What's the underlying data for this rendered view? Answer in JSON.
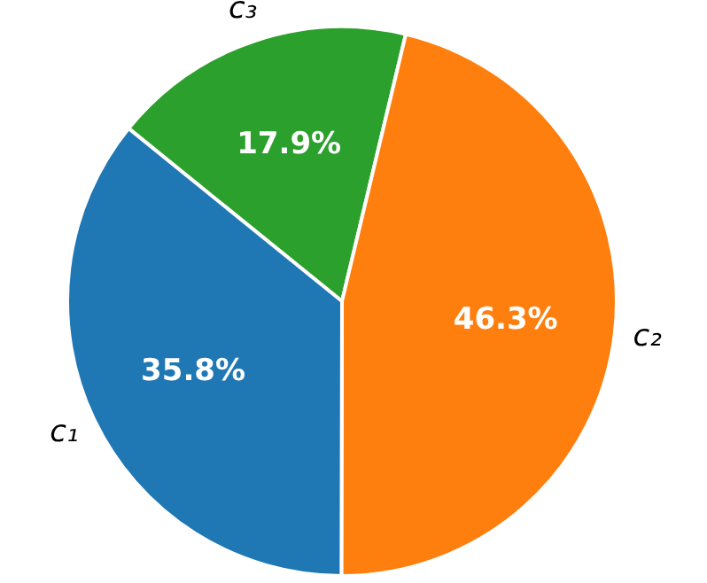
{
  "chart_data": {
    "type": "pie",
    "categories": [
      "c₁",
      "c₂",
      "c₃"
    ],
    "values": [
      35.8,
      46.3,
      17.9
    ],
    "colors": [
      "#1f77b4",
      "#ff7f0e",
      "#2ca02c"
    ],
    "value_labels": [
      "35.8%",
      "46.3%",
      "17.9%"
    ],
    "legend": false
  }
}
